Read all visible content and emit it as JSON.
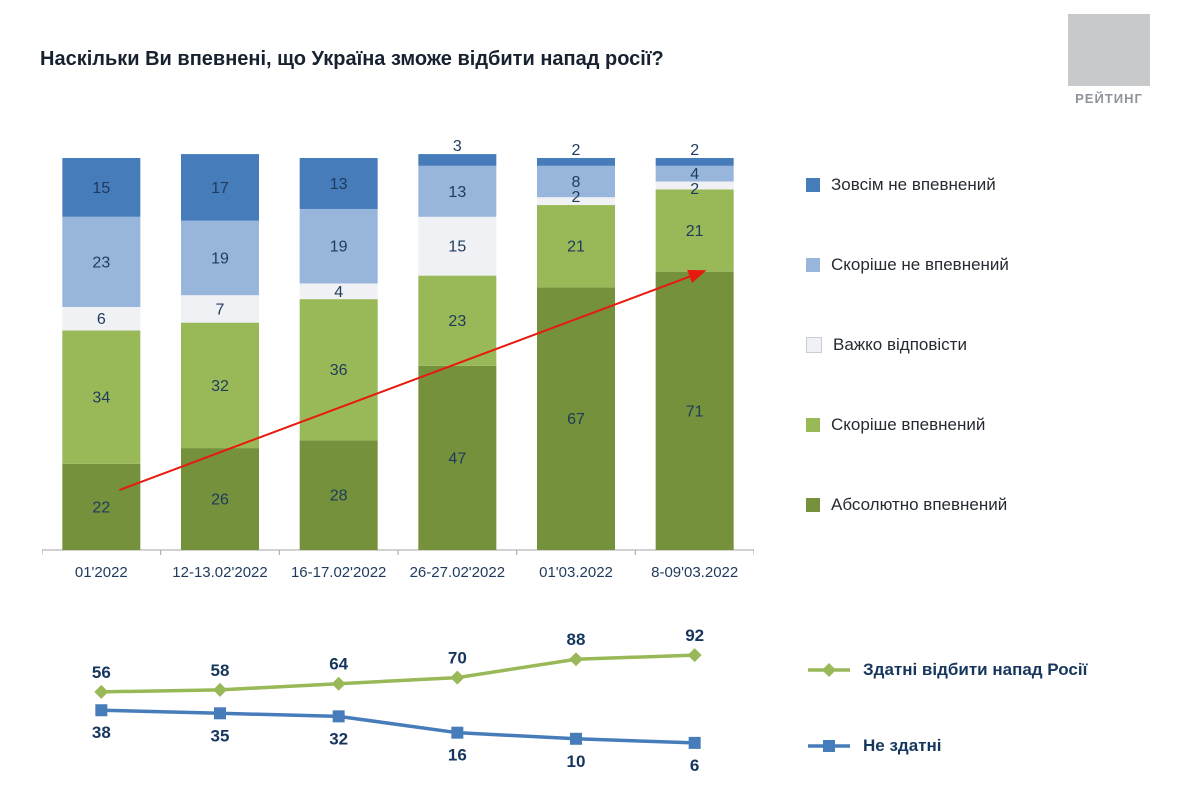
{
  "page": {
    "title": "Наскільки Ви впевнені, що Україна зможе відбити напад росії?",
    "logo_text": "РЕЙТИНГ"
  },
  "colors": {
    "label_text": "#1e3a5c",
    "axis": "#a6a6a6",
    "arrow": "#e8190f"
  },
  "chart_data": [
    {
      "id": "confidence-stacked",
      "type": "bar",
      "stacked": true,
      "categories": [
        "01'2022",
        "12-13.02'2022",
        "16-17.02'2022",
        "26-27.02'2022",
        "01'03.2022",
        "8-09'03.2022"
      ],
      "series": [
        {
          "name": "Абсолютно впевнений",
          "color": "#75913b",
          "values": [
            22,
            26,
            28,
            47,
            67,
            71
          ]
        },
        {
          "name": "Скоріше впевнений",
          "color": "#99b958",
          "values": [
            34,
            32,
            36,
            23,
            21,
            21
          ]
        },
        {
          "name": "Важко відповісти",
          "color": "#eff1f4",
          "values": [
            6,
            7,
            4,
            15,
            2,
            2
          ]
        },
        {
          "name": "Скоріше не впевнений",
          "color": "#98b6db",
          "values": [
            23,
            19,
            19,
            13,
            8,
            4
          ]
        },
        {
          "name": "Зовсім не впевнений",
          "color": "#467cba",
          "values": [
            15,
            17,
            13,
            3,
            2,
            2
          ]
        }
      ],
      "ylim": [
        0,
        100
      ],
      "legend_position": "right",
      "legend": [
        {
          "label": "Зовсім не впевнений",
          "color": "#467cba"
        },
        {
          "label": "Скоріше не впевнений",
          "color": "#98b6db"
        },
        {
          "label": "Важко відповісти",
          "color": "#eff1f4"
        },
        {
          "label": "Скоріше впевнений",
          "color": "#99b958"
        },
        {
          "label": "Абсолютно впевнений",
          "color": "#75913b"
        }
      ],
      "annotation": {
        "type": "trend-arrow",
        "color": "#e8190f",
        "from_category": 0,
        "to_category": 5,
        "to_value": 71
      }
    },
    {
      "id": "ability-lines",
      "type": "line",
      "categories": [
        "01'2022",
        "12-13.02'2022",
        "16-17.02'2022",
        "26-27.02'2022",
        "01'03.2022",
        "8-09'03.2022"
      ],
      "series": [
        {
          "name": "Здатні відбити напад Росії",
          "color": "#99b958",
          "marker": "diamond",
          "values": [
            56,
            58,
            64,
            70,
            88,
            92
          ]
        },
        {
          "name": "Не здатні",
          "color": "#467cba",
          "marker": "square",
          "values": [
            38,
            35,
            32,
            16,
            10,
            6
          ]
        }
      ],
      "legend_position": "right",
      "legend": [
        {
          "label": "Здатні відбити напад Росії",
          "color": "#99b958",
          "marker": "diamond"
        },
        {
          "label": "Не здатні",
          "color": "#467cba",
          "marker": "square"
        }
      ]
    }
  ]
}
